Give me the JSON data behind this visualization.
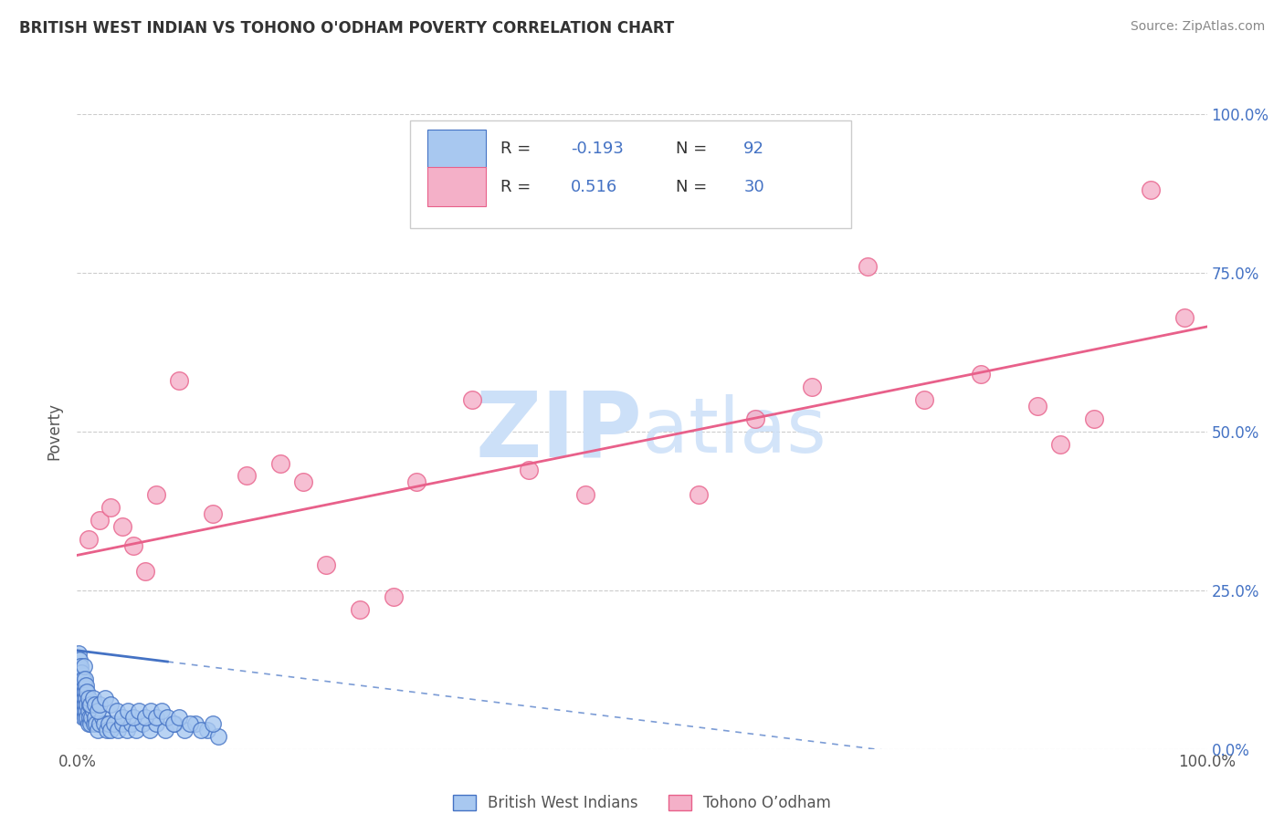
{
  "title": "BRITISH WEST INDIAN VS TOHONO O'ODHAM POVERTY CORRELATION CHART",
  "source": "Source: ZipAtlas.com",
  "ylabel": "Poverty",
  "watermark": "ZIPatlas",
  "xlim": [
    0.0,
    1.0
  ],
  "ylim": [
    0.0,
    1.0
  ],
  "ytick_labels_right": [
    "0.0%",
    "25.0%",
    "50.0%",
    "75.0%",
    "100.0%"
  ],
  "group1_name": "British West Indians",
  "group2_name": "Tohono O’odham",
  "group1_color": "#a8c8f0",
  "group2_color": "#f4b0c8",
  "group1_edge_color": "#4472c4",
  "group2_edge_color": "#e8608a",
  "legend_text_color": "#4472c4",
  "grid_color": "#cccccc",
  "title_color": "#333333",
  "source_color": "#888888",
  "watermark_color": "#cce0f8",
  "background_color": "#ffffff",
  "blue_line_intercept": 0.155,
  "blue_line_slope": -0.22,
  "blue_line_solid_end": 0.08,
  "pink_line_intercept": 0.305,
  "pink_line_slope": 0.36,
  "group1_x": [
    0.001,
    0.001,
    0.001,
    0.002,
    0.002,
    0.002,
    0.002,
    0.003,
    0.003,
    0.003,
    0.003,
    0.004,
    0.004,
    0.004,
    0.005,
    0.005,
    0.005,
    0.005,
    0.006,
    0.006,
    0.006,
    0.007,
    0.007,
    0.007,
    0.008,
    0.008,
    0.009,
    0.009,
    0.01,
    0.01,
    0.011,
    0.011,
    0.012,
    0.013,
    0.014,
    0.015,
    0.016,
    0.017,
    0.018,
    0.02,
    0.022,
    0.024,
    0.026,
    0.028,
    0.03,
    0.033,
    0.036,
    0.04,
    0.044,
    0.048,
    0.052,
    0.058,
    0.064,
    0.07,
    0.078,
    0.086,
    0.095,
    0.105,
    0.115,
    0.125,
    0.001,
    0.002,
    0.003,
    0.004,
    0.005,
    0.006,
    0.007,
    0.008,
    0.009,
    0.01,
    0.012,
    0.014,
    0.016,
    0.018,
    0.02,
    0.025,
    0.03,
    0.035,
    0.04,
    0.045,
    0.05,
    0.055,
    0.06,
    0.065,
    0.07,
    0.075,
    0.08,
    0.085,
    0.09,
    0.1,
    0.11,
    0.12
  ],
  "group1_y": [
    0.08,
    0.1,
    0.12,
    0.07,
    0.09,
    0.11,
    0.13,
    0.06,
    0.08,
    0.1,
    0.12,
    0.07,
    0.09,
    0.11,
    0.05,
    0.07,
    0.09,
    0.11,
    0.06,
    0.08,
    0.1,
    0.05,
    0.07,
    0.09,
    0.06,
    0.08,
    0.05,
    0.07,
    0.04,
    0.06,
    0.05,
    0.07,
    0.04,
    0.05,
    0.06,
    0.04,
    0.05,
    0.04,
    0.03,
    0.04,
    0.05,
    0.04,
    0.03,
    0.04,
    0.03,
    0.04,
    0.03,
    0.04,
    0.03,
    0.04,
    0.03,
    0.04,
    0.03,
    0.04,
    0.03,
    0.04,
    0.03,
    0.04,
    0.03,
    0.02,
    0.15,
    0.14,
    0.13,
    0.12,
    0.11,
    0.13,
    0.11,
    0.1,
    0.09,
    0.08,
    0.07,
    0.08,
    0.07,
    0.06,
    0.07,
    0.08,
    0.07,
    0.06,
    0.05,
    0.06,
    0.05,
    0.06,
    0.05,
    0.06,
    0.05,
    0.06,
    0.05,
    0.04,
    0.05,
    0.04,
    0.03,
    0.04
  ],
  "group2_x": [
    0.01,
    0.02,
    0.03,
    0.04,
    0.05,
    0.06,
    0.07,
    0.09,
    0.12,
    0.15,
    0.18,
    0.2,
    0.22,
    0.25,
    0.28,
    0.3,
    0.35,
    0.4,
    0.45,
    0.55,
    0.6,
    0.65,
    0.7,
    0.75,
    0.8,
    0.85,
    0.87,
    0.9,
    0.95,
    0.98
  ],
  "group2_y": [
    0.33,
    0.36,
    0.38,
    0.35,
    0.32,
    0.28,
    0.4,
    0.58,
    0.37,
    0.43,
    0.45,
    0.42,
    0.29,
    0.22,
    0.24,
    0.42,
    0.55,
    0.44,
    0.4,
    0.4,
    0.52,
    0.57,
    0.76,
    0.55,
    0.59,
    0.54,
    0.48,
    0.52,
    0.88,
    0.68
  ]
}
